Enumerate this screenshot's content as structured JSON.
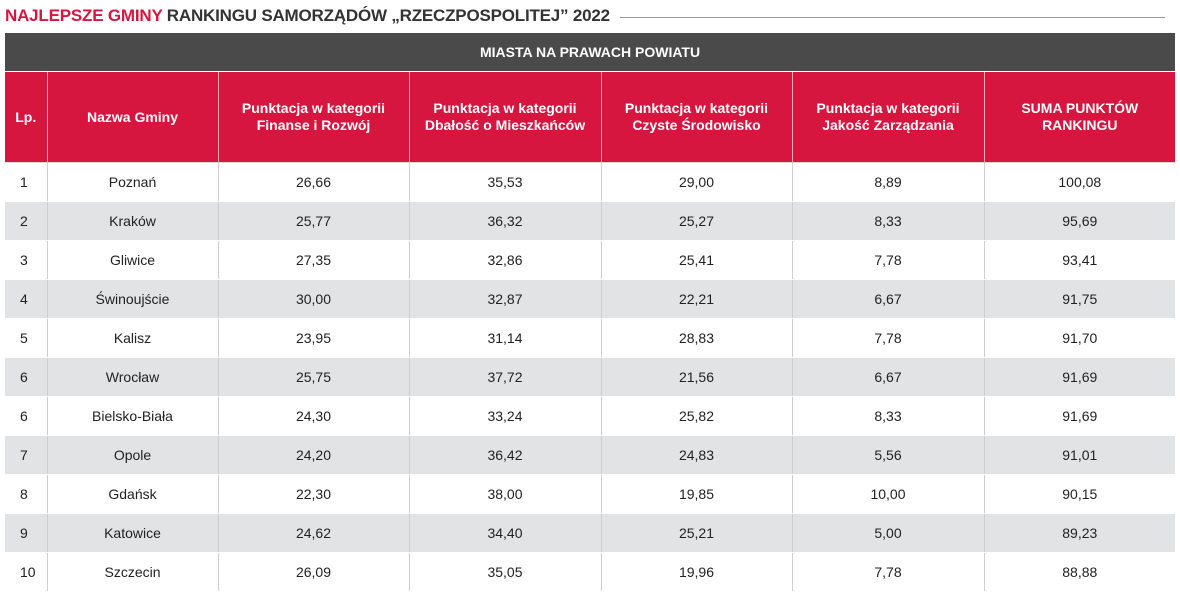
{
  "heading": {
    "accent": "NAJLEPSZE GMINY",
    "rest": " RANKINGU SAMORZĄDÓW „RZECZPOSPOLITEJ” 2022"
  },
  "table": {
    "band": "MIASTA NA PRAWACH POWIATU",
    "columns": [
      "Lp.",
      "Nazwa Gminy",
      "Punktacja w kategorii Finanse i Rozwój",
      "Punktacja w kategorii Dbałość o Mieszkańców",
      "Punktacja w kategorii Czyste Środowisko",
      "Punktacja w kategorii Jakość Zarządzania",
      "SUMA PUNKTÓW RANKINGU"
    ],
    "rows": [
      [
        "1",
        "Poznań",
        "26,66",
        "35,53",
        "29,00",
        "8,89",
        "100,08"
      ],
      [
        "2",
        "Kraków",
        "25,77",
        "36,32",
        "25,27",
        "8,33",
        "95,69"
      ],
      [
        "3",
        "Gliwice",
        "27,35",
        "32,86",
        "25,41",
        "7,78",
        "93,41"
      ],
      [
        "4",
        "Świnoujście",
        "30,00",
        "32,87",
        "22,21",
        "6,67",
        "91,75"
      ],
      [
        "5",
        "Kalisz",
        "23,95",
        "31,14",
        "28,83",
        "7,78",
        "91,70"
      ],
      [
        "6",
        "Wrocław",
        "25,75",
        "37,72",
        "21,56",
        "6,67",
        "91,69"
      ],
      [
        "6",
        "Bielsko-Biała",
        "24,30",
        "33,24",
        "25,82",
        "8,33",
        "91,69"
      ],
      [
        "7",
        "Opole",
        "24,20",
        "36,42",
        "24,83",
        "5,56",
        "91,01"
      ],
      [
        "8",
        "Gdańsk",
        "22,30",
        "38,00",
        "19,85",
        "10,00",
        "90,15"
      ],
      [
        "9",
        "Katowice",
        "24,62",
        "34,40",
        "25,21",
        "5,00",
        "89,23"
      ],
      [
        "10",
        "Szczecin",
        "26,09",
        "35,05",
        "19,96",
        "7,78",
        "88,88"
      ]
    ]
  },
  "colors": {
    "accent": "#d6163f",
    "band": "#4a4a4a",
    "stripe": "#e2e3e5"
  }
}
